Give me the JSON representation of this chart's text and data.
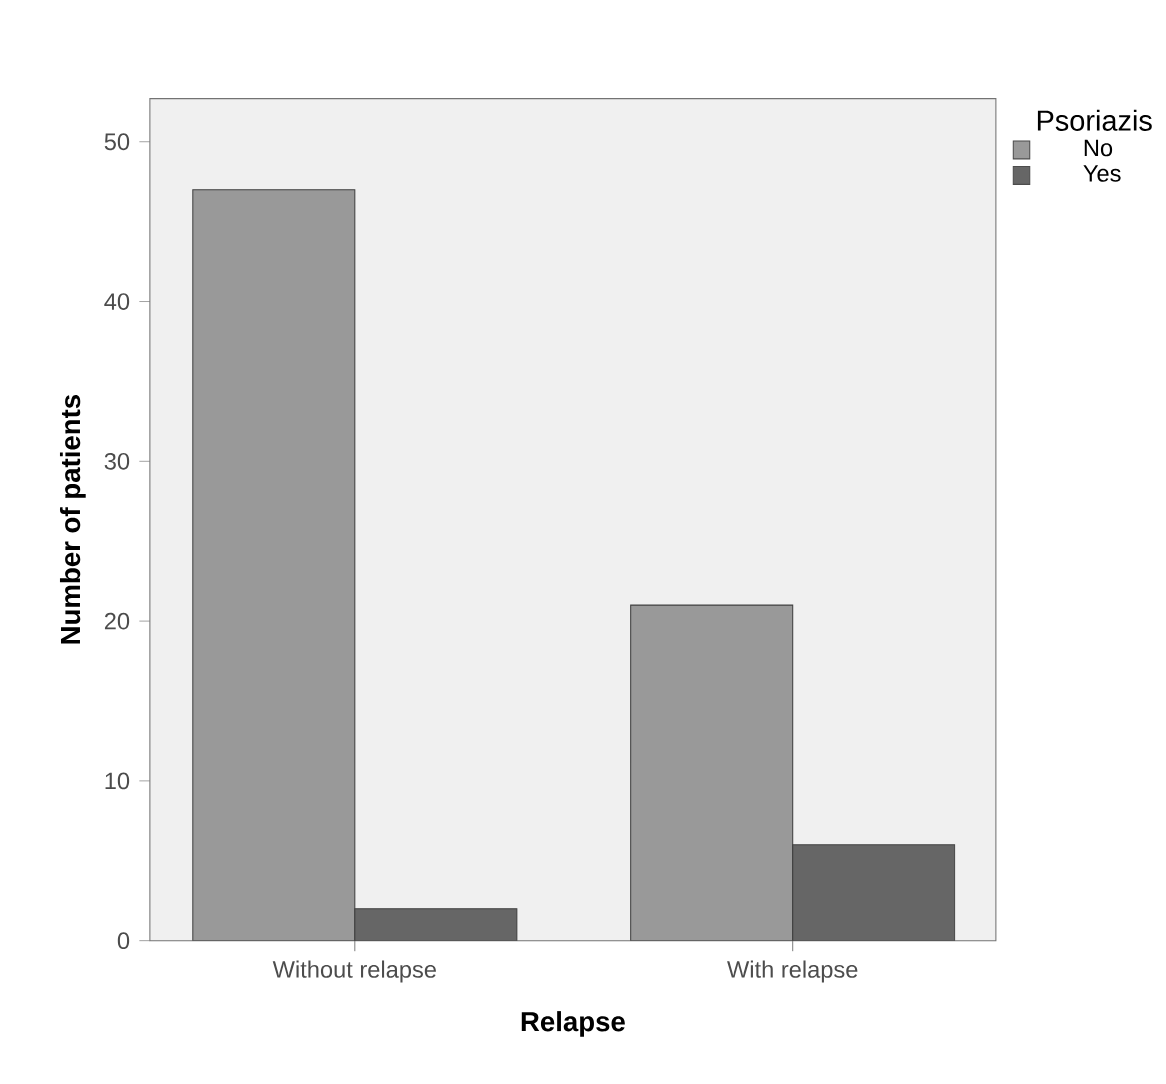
{
  "chart_data": {
    "type": "bar",
    "xlabel": "Relapse",
    "ylabel": "Number of patients",
    "legend_title": "Psoriazis",
    "categories": [
      "Without relapse",
      "With relapse"
    ],
    "series": [
      {
        "name": "No",
        "color": "#999999",
        "values": [
          47,
          21
        ]
      },
      {
        "name": "Yes",
        "color": "#666666",
        "values": [
          2,
          6
        ]
      }
    ],
    "ylim": [
      0,
      52.7
    ],
    "yticks": [
      0,
      10,
      20,
      30,
      40,
      50
    ],
    "grid": false,
    "legend": "top right"
  }
}
